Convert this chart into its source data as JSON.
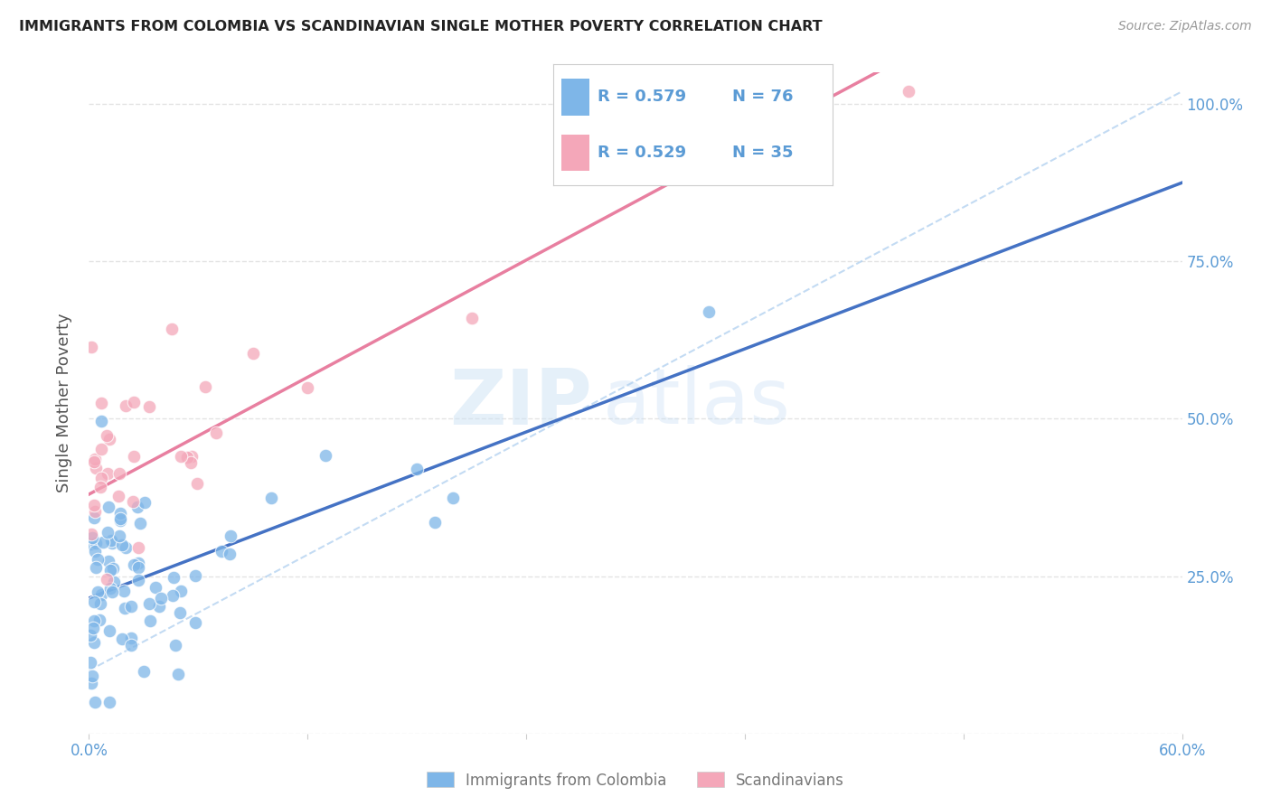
{
  "title": "IMMIGRANTS FROM COLOMBIA VS SCANDINAVIAN SINGLE MOTHER POVERTY CORRELATION CHART",
  "source": "Source: ZipAtlas.com",
  "ylabel": "Single Mother Poverty",
  "xlim": [
    0.0,
    0.6
  ],
  "ylim": [
    0.0,
    1.05
  ],
  "xtick_positions": [
    0.0,
    0.12,
    0.24,
    0.36,
    0.48,
    0.6
  ],
  "xticklabels": [
    "0.0%",
    "",
    "",
    "",
    "",
    "60.0%"
  ],
  "ytick_positions": [
    0.0,
    0.25,
    0.5,
    0.75,
    1.0
  ],
  "yticklabels_right": [
    "",
    "25.0%",
    "50.0%",
    "75.0%",
    "100.0%"
  ],
  "legend_labels": [
    "Immigrants from Colombia",
    "Scandinavians"
  ],
  "r_colombia": 0.579,
  "n_colombia": 76,
  "r_scandinavian": 0.529,
  "n_scandinavian": 35,
  "color_colombia": "#7eb6e8",
  "color_scandinavian": "#f4a7b9",
  "line_color_colombia": "#4472c4",
  "line_color_scandinavian": "#e87fa0",
  "background_color": "#ffffff",
  "grid_color": "#dddddd",
  "colombia_seed": 101,
  "scandinavian_seed": 202,
  "col_intercept": 0.215,
  "col_slope": 1.1,
  "sca_intercept": 0.38,
  "sca_slope": 1.55,
  "dash_line_x": [
    0.0,
    0.6
  ],
  "dash_line_y": [
    0.1,
    1.02
  ]
}
